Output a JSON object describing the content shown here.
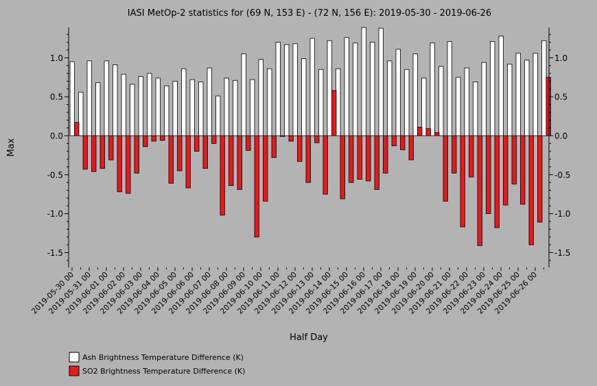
{
  "chart_data": {
    "type": "bar",
    "title": "IASI MetOp-2 statistics for (69 N, 153 E) - (72 N, 156 E): 2019-05-30 - 2019-06-26",
    "xlabel": "Half Day",
    "ylabel": "Max",
    "ylim": [
      -1.69,
      1.39
    ],
    "yticks": [
      "1.0",
      "0.5",
      "0.0",
      "-0.5",
      "-1.0",
      "-1.5"
    ],
    "ytick_values": [
      1.0,
      0.5,
      0.0,
      -0.5,
      -1.0,
      -1.5
    ],
    "x_tick_labels": [
      "2019-05-30 00",
      "2019-05-31 00",
      "2019-06-01 00",
      "2019-06-02 00",
      "2019-06-03 00",
      "2019-06-04 00",
      "2019-06-05 00",
      "2019-06-06 00",
      "2019-06-07 00",
      "2019-06-08 00",
      "2019-06-09 00",
      "2019-06-10 00",
      "2019-06-11 00",
      "2019-06-12 00",
      "2019-06-13 00",
      "2019-06-14 00",
      "2019-06-15 00",
      "2019-06-16 00",
      "2019-06-17 00",
      "2019-06-18 00",
      "2019-06-19 00",
      "2019-06-20 00",
      "2019-06-21 00",
      "2019-06-22 00",
      "2019-06-23 00",
      "2019-06-24 00",
      "2019-06-25 00",
      "2019-06-26 00"
    ],
    "categories": [
      "2019-05-30 00",
      "2019-05-30 12",
      "2019-05-31 00",
      "2019-05-31 12",
      "2019-06-01 00",
      "2019-06-01 12",
      "2019-06-02 00",
      "2019-06-02 12",
      "2019-06-03 00",
      "2019-06-03 12",
      "2019-06-04 00",
      "2019-06-04 12",
      "2019-06-05 00",
      "2019-06-05 12",
      "2019-06-06 00",
      "2019-06-06 12",
      "2019-06-07 00",
      "2019-06-07 12",
      "2019-06-08 00",
      "2019-06-08 12",
      "2019-06-09 00",
      "2019-06-09 12",
      "2019-06-10 00",
      "2019-06-10 12",
      "2019-06-11 00",
      "2019-06-11 12",
      "2019-06-12 00",
      "2019-06-12 12",
      "2019-06-13 00",
      "2019-06-13 12",
      "2019-06-14 00",
      "2019-06-14 12",
      "2019-06-15 00",
      "2019-06-15 12",
      "2019-06-16 00",
      "2019-06-16 12",
      "2019-06-17 00",
      "2019-06-17 12",
      "2019-06-18 00",
      "2019-06-18 12",
      "2019-06-19 00",
      "2019-06-19 12",
      "2019-06-20 00",
      "2019-06-20 12",
      "2019-06-21 00",
      "2019-06-21 12",
      "2019-06-22 00",
      "2019-06-22 12",
      "2019-06-23 00",
      "2019-06-23 12",
      "2019-06-24 00",
      "2019-06-24 12",
      "2019-06-25 00",
      "2019-06-25 12",
      "2019-06-26 00",
      "2019-06-26 12"
    ],
    "series": [
      {
        "name": "Ash Brightness Temperature Difference (K)",
        "color": "#ffffff",
        "values": [
          0.95,
          0.56,
          0.96,
          0.68,
          0.96,
          0.91,
          0.79,
          0.66,
          0.76,
          0.8,
          0.74,
          0.64,
          0.7,
          0.86,
          0.72,
          0.69,
          0.87,
          0.51,
          0.74,
          0.71,
          1.05,
          0.72,
          0.98,
          0.86,
          1.2,
          1.17,
          1.18,
          0.99,
          1.25,
          0.85,
          1.22,
          0.86,
          1.26,
          1.19,
          1.39,
          1.2,
          1.38,
          0.96,
          1.11,
          0.85,
          1.05,
          0.74,
          1.19,
          0.89,
          1.21,
          0.75,
          0.87,
          0.69,
          0.94,
          1.21,
          1.28,
          0.92,
          1.06,
          0.97,
          1.06,
          1.22
        ]
      },
      {
        "name": "SO2 Brightness Temperature Difference (K)",
        "color": "#e41a1c",
        "values": [
          0.17,
          -0.43,
          -0.46,
          -0.42,
          -0.31,
          -0.72,
          -0.74,
          -0.48,
          -0.14,
          -0.07,
          -0.06,
          -0.61,
          -0.45,
          -0.67,
          -0.2,
          -0.42,
          -0.1,
          -1.02,
          -0.64,
          -0.69,
          -0.19,
          -1.3,
          -0.84,
          -0.28,
          -0.01,
          -0.07,
          -0.33,
          -0.6,
          -0.09,
          -0.75,
          0.58,
          -0.81,
          -0.6,
          -0.56,
          -0.58,
          -0.69,
          -0.48,
          -0.13,
          -0.18,
          -0.31,
          0.11,
          0.09,
          0.04,
          -0.84,
          -0.48,
          -1.17,
          -0.53,
          -1.41,
          -1.0,
          -1.18,
          -0.89,
          -0.62,
          -0.88,
          -1.4,
          -1.11,
          0.75
        ]
      }
    ],
    "grid": false,
    "legend_position": "bottom-left"
  }
}
